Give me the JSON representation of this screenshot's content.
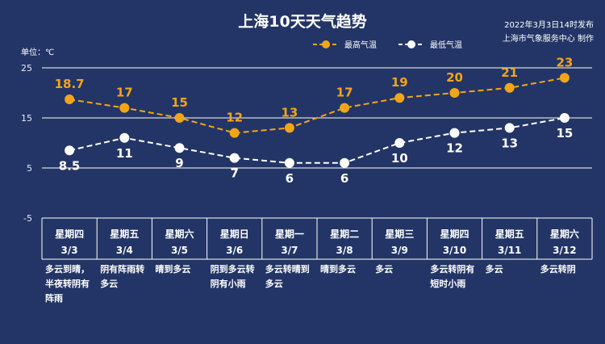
{
  "header": {
    "title": "上海10天天气趋势",
    "publish_time": "2022年3月3日14时发布",
    "publisher": "上海市气象服务中心 制作"
  },
  "colors": {
    "background": "#233566",
    "high": "#f3a51a",
    "low": "#ffffff"
  },
  "chart_data": {
    "type": "line",
    "title": "上海10天天气趋势",
    "unit_label": "单位：℃",
    "ylim": [
      -5,
      25
    ],
    "yticks": [
      -5,
      5,
      15,
      25
    ],
    "grid": true,
    "legend_position": "top-right",
    "categories": [
      "3/3",
      "3/4",
      "3/5",
      "3/6",
      "3/7",
      "3/8",
      "3/9",
      "3/10",
      "3/11",
      "3/12"
    ],
    "days": [
      "星期四",
      "星期五",
      "星期六",
      "星期日",
      "星期一",
      "星期二",
      "星期三",
      "星期四",
      "星期五",
      "星期六"
    ],
    "series": [
      {
        "name": "最高气温",
        "values": [
          18.7,
          17,
          15,
          12,
          13,
          17,
          19,
          20,
          21,
          23
        ],
        "labels": [
          "18.7",
          "17",
          "15",
          "12",
          "13",
          "17",
          "19",
          "20",
          "21",
          "23"
        ]
      },
      {
        "name": "最低气温",
        "values": [
          8.5,
          11,
          9,
          7,
          6,
          6,
          10,
          12,
          13,
          15
        ],
        "labels": [
          "8.5",
          "11",
          "9",
          "7",
          "6",
          "6",
          "10",
          "12",
          "13",
          "15"
        ]
      }
    ],
    "conditions": [
      [
        "多云到晴，",
        "半夜转阴有",
        "阵雨"
      ],
      [
        "阴有阵雨转",
        "多云"
      ],
      [
        "晴到多云"
      ],
      [
        "阴到多云转",
        "阴有小雨"
      ],
      [
        "多云转晴到",
        "多云"
      ],
      [
        "晴到多云"
      ],
      [
        "多云"
      ],
      [
        "多云转阴有",
        "短时小雨"
      ],
      [
        "多云"
      ],
      [
        "多云转阴"
      ]
    ]
  }
}
